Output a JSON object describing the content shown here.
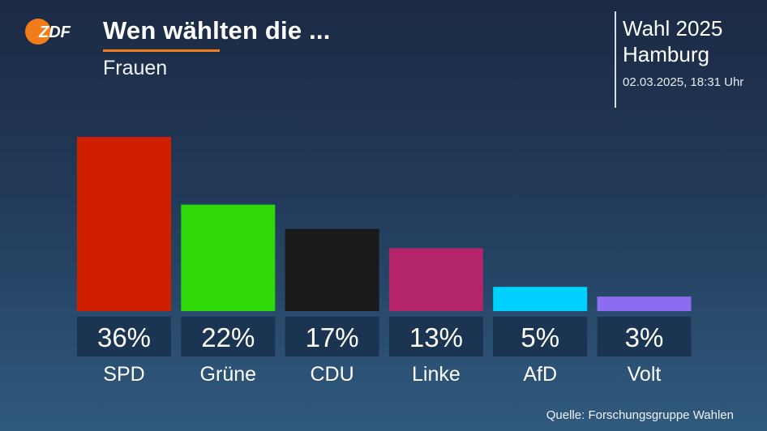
{
  "header": {
    "logo_text": "ZDF",
    "title": "Wen wählten die ...",
    "subtitle": "Frauen"
  },
  "info": {
    "line1": "Wahl 2025",
    "line2": "Hamburg",
    "date": "02.03.2025, 18:31 Uhr"
  },
  "source": "Quelle: Forschungsgruppe Wahlen",
  "colors": {
    "accent": "#f27c1a",
    "label_box": "#1b3452"
  },
  "chart_data": {
    "type": "bar",
    "title": "Wen wählten die ...",
    "subtitle": "Frauen",
    "categories": [
      "SPD",
      "Grüne",
      "CDU",
      "Linke",
      "AfD",
      "Volt"
    ],
    "values": [
      36,
      22,
      17,
      13,
      5,
      3
    ],
    "value_labels": [
      "36%",
      "22%",
      "17%",
      "13%",
      "5%",
      "3%"
    ],
    "colors": [
      "#d01f00",
      "#2ed907",
      "#1a1a1a",
      "#b3246a",
      "#00d1ff",
      "#8c6cf0"
    ],
    "unit": "%",
    "ylim": [
      0,
      36
    ],
    "grid": false,
    "legend": "none"
  }
}
